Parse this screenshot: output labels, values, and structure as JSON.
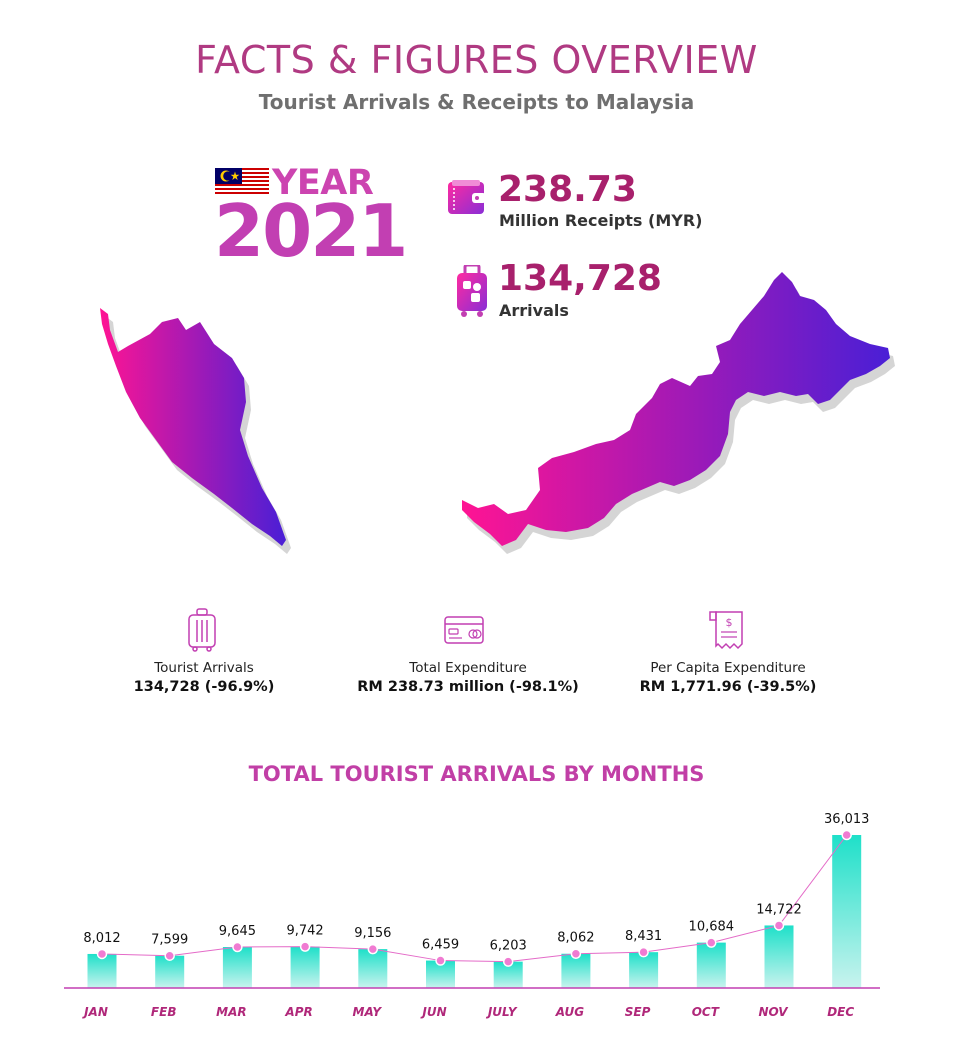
{
  "header": {
    "title": "FACTS & FIGURES OVERVIEW",
    "subtitle": "Tourist Arrivals & Receipts to Malaysia"
  },
  "year": {
    "label": "YEAR",
    "value": "2021"
  },
  "highlights": {
    "receipts": {
      "value": "238.73",
      "label": "Million Receipts (MYR)",
      "icon": "wallet-icon"
    },
    "arrivals": {
      "value": "134,728",
      "label": "Arrivals",
      "icon": "luggage-icon"
    }
  },
  "kpis": [
    {
      "label": "Tourist Arrivals",
      "value": "134,728 (-96.9%)",
      "icon": "luggage-icon"
    },
    {
      "label": "Total Expenditure",
      "value": "RM 238.73 million (-98.1%)",
      "icon": "credit-card-icon"
    },
    {
      "label": "Per Capita Expenditure",
      "value": "RM 1,771.96 (-39.5%)",
      "icon": "receipt-icon"
    }
  ],
  "colors": {
    "title": "#b03a82",
    "bar_top": "#1ee0c9",
    "bar_bottom": "#c9f3ee",
    "line": "#e46bc8",
    "point": "#f07bd2",
    "map_start": "#ff1493",
    "map_end": "#4a1fd6"
  },
  "chart_data": {
    "type": "bar",
    "title": "TOTAL TOURIST ARRIVALS BY MONTHS",
    "categories": [
      "JAN",
      "FEB",
      "MAR",
      "APR",
      "MAY",
      "JUN",
      "JULY",
      "AUG",
      "SEP",
      "OCT",
      "NOV",
      "DEC"
    ],
    "values": [
      8012,
      7599,
      9645,
      9742,
      9156,
      6459,
      6203,
      8062,
      8431,
      10684,
      14722,
      36013
    ],
    "value_labels": [
      "8,012",
      "7,599",
      "9,645",
      "9,742",
      "9,156",
      "6,459",
      "6,203",
      "8,062",
      "8,431",
      "10,684",
      "14,722",
      "36,013"
    ],
    "ylim": [
      0,
      36013
    ],
    "overlay_line": true,
    "grid": false
  }
}
